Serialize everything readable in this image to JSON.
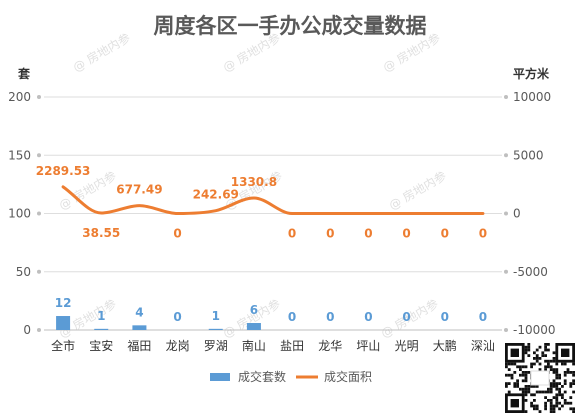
{
  "chart_data": {
    "type": "bar",
    "title": "周度各区一手办公成交量数据",
    "categories": [
      "全市",
      "宝安",
      "福田",
      "龙岗",
      "罗湖",
      "南山",
      "盐田",
      "龙华",
      "坪山",
      "光明",
      "大鹏",
      "深汕"
    ],
    "series": [
      {
        "name": "成交套数",
        "type": "bar",
        "axis": "left",
        "color": "#5b9bd5",
        "values": [
          12,
          1,
          4,
          0,
          1,
          6,
          0,
          0,
          0,
          0,
          0,
          0
        ],
        "labels": [
          "12",
          "1",
          "4",
          "0",
          "1",
          "6",
          "0",
          "0",
          "0",
          "0",
          "0",
          "0"
        ]
      },
      {
        "name": "成交面积",
        "type": "line",
        "smooth": true,
        "axis": "right",
        "color": "#ed7d31",
        "values": [
          2289.53,
          38.55,
          677.49,
          0,
          242.69,
          1330.8,
          0,
          0,
          0,
          0,
          0,
          0
        ],
        "labels": [
          "2289.53",
          "38.55",
          "677.49",
          "0",
          "242.69",
          "1330.8",
          "0",
          "0",
          "0",
          "0",
          "0",
          "0"
        ]
      }
    ],
    "ylabel_left": "套",
    "ylabel_right": "平方米",
    "ylim_left": [
      0,
      200
    ],
    "yticks_left": [
      0,
      50,
      100,
      150,
      200
    ],
    "ylim_right": [
      -10000,
      10000
    ],
    "yticks_right": [
      -10000,
      -5000,
      0,
      5000,
      10000
    ],
    "grid": true,
    "legend_position": "bottom"
  },
  "watermark_text": "@ 房地内参"
}
